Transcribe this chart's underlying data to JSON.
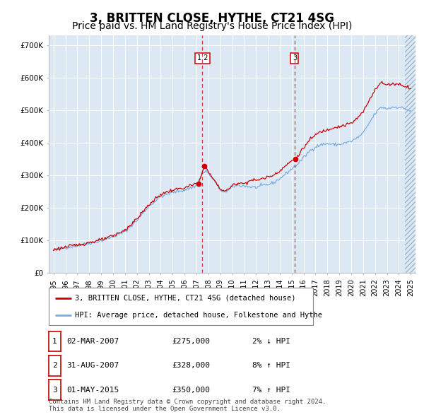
{
  "title": "3, BRITTEN CLOSE, HYTHE, CT21 4SG",
  "subtitle": "Price paid vs. HM Land Registry's House Price Index (HPI)",
  "title_fontsize": 12,
  "subtitle_fontsize": 10,
  "legend1": "3, BRITTEN CLOSE, HYTHE, CT21 4SG (detached house)",
  "legend2": "HPI: Average price, detached house, Folkestone and Hythe",
  "red_line_color": "#cc0000",
  "blue_line_color": "#7aacde",
  "plot_bg_color": "#dce9f5",
  "transactions": [
    {
      "date_num": 2007.17,
      "price": 275000,
      "label": "1"
    },
    {
      "date_num": 2007.67,
      "price": 328000,
      "label": "2"
    },
    {
      "date_num": 2015.33,
      "price": 350000,
      "label": "3"
    }
  ],
  "vline_dates": [
    2007.5,
    2015.25
  ],
  "vline_labels": [
    "1 2",
    "3"
  ],
  "label_dates": [
    2007.5,
    2015.25
  ],
  "ylim": [
    0,
    730000
  ],
  "yticks": [
    0,
    100000,
    200000,
    300000,
    400000,
    500000,
    600000,
    700000
  ],
  "ytick_labels": [
    "£0",
    "£100K",
    "£200K",
    "£300K",
    "£400K",
    "£500K",
    "£600K",
    "£700K"
  ],
  "xlim_start": 1994.6,
  "xlim_end": 2025.4,
  "xtick_years": [
    1995,
    1996,
    1997,
    1998,
    1999,
    2000,
    2001,
    2002,
    2003,
    2004,
    2005,
    2006,
    2007,
    2008,
    2009,
    2010,
    2011,
    2012,
    2013,
    2014,
    2015,
    2016,
    2017,
    2018,
    2019,
    2020,
    2021,
    2022,
    2023,
    2024,
    2025
  ],
  "footer": "Contains HM Land Registry data © Crown copyright and database right 2024.\nThis data is licensed under the Open Government Licence v3.0.",
  "table": [
    {
      "num": "1",
      "date": "02-MAR-2007",
      "price": "£275,000",
      "hpi": "2% ↓ HPI"
    },
    {
      "num": "2",
      "date": "31-AUG-2007",
      "price": "£328,000",
      "hpi": "8% ↑ HPI"
    },
    {
      "num": "3",
      "date": "01-MAY-2015",
      "price": "£350,000",
      "hpi": "7% ↑ HPI"
    }
  ],
  "hpi_anchors_blue": [
    [
      1995.0,
      70000
    ],
    [
      1996.0,
      78000
    ],
    [
      1997.0,
      85000
    ],
    [
      1998.0,
      92000
    ],
    [
      1999.0,
      100000
    ],
    [
      2000.0,
      112000
    ],
    [
      2001.0,
      128000
    ],
    [
      2002.0,
      162000
    ],
    [
      2003.0,
      205000
    ],
    [
      2004.0,
      235000
    ],
    [
      2005.0,
      248000
    ],
    [
      2006.0,
      255000
    ],
    [
      2007.0,
      268000
    ],
    [
      2007.5,
      305000
    ],
    [
      2007.83,
      315000
    ],
    [
      2008.5,
      285000
    ],
    [
      2009.0,
      255000
    ],
    [
      2009.5,
      248000
    ],
    [
      2010.0,
      265000
    ],
    [
      2010.5,
      270000
    ],
    [
      2011.0,
      268000
    ],
    [
      2011.5,
      265000
    ],
    [
      2012.0,
      263000
    ],
    [
      2012.5,
      268000
    ],
    [
      2013.0,
      272000
    ],
    [
      2013.5,
      278000
    ],
    [
      2014.0,
      290000
    ],
    [
      2014.5,
      305000
    ],
    [
      2015.0,
      320000
    ],
    [
      2015.5,
      335000
    ],
    [
      2016.0,
      355000
    ],
    [
      2016.5,
      375000
    ],
    [
      2017.0,
      388000
    ],
    [
      2017.5,
      395000
    ],
    [
      2018.0,
      398000
    ],
    [
      2018.5,
      395000
    ],
    [
      2019.0,
      395000
    ],
    [
      2019.5,
      400000
    ],
    [
      2020.0,
      405000
    ],
    [
      2020.5,
      415000
    ],
    [
      2021.0,
      430000
    ],
    [
      2021.5,
      460000
    ],
    [
      2022.0,
      490000
    ],
    [
      2022.5,
      510000
    ],
    [
      2023.0,
      505000
    ],
    [
      2023.5,
      510000
    ],
    [
      2024.0,
      510000
    ],
    [
      2024.5,
      505000
    ],
    [
      2025.0,
      498000
    ]
  ],
  "hpi_anchors_red": [
    [
      1995.0,
      72000
    ],
    [
      1996.0,
      80000
    ],
    [
      1997.0,
      87000
    ],
    [
      1998.0,
      94000
    ],
    [
      1999.0,
      102000
    ],
    [
      2000.0,
      114000
    ],
    [
      2001.0,
      132000
    ],
    [
      2002.0,
      167000
    ],
    [
      2003.0,
      210000
    ],
    [
      2004.0,
      242000
    ],
    [
      2005.0,
      255000
    ],
    [
      2006.0,
      262000
    ],
    [
      2007.0,
      275000
    ],
    [
      2007.17,
      275000
    ],
    [
      2007.67,
      328000
    ],
    [
      2007.83,
      325000
    ],
    [
      2008.0,
      310000
    ],
    [
      2008.5,
      285000
    ],
    [
      2009.0,
      258000
    ],
    [
      2009.5,
      252000
    ],
    [
      2010.0,
      268000
    ],
    [
      2010.5,
      278000
    ],
    [
      2011.0,
      275000
    ],
    [
      2011.5,
      285000
    ],
    [
      2012.0,
      285000
    ],
    [
      2012.5,
      290000
    ],
    [
      2013.0,
      295000
    ],
    [
      2013.5,
      302000
    ],
    [
      2014.0,
      315000
    ],
    [
      2014.5,
      330000
    ],
    [
      2015.0,
      345000
    ],
    [
      2015.33,
      350000
    ],
    [
      2015.5,
      360000
    ],
    [
      2016.0,
      385000
    ],
    [
      2016.5,
      408000
    ],
    [
      2017.0,
      425000
    ],
    [
      2017.5,
      435000
    ],
    [
      2018.0,
      440000
    ],
    [
      2018.5,
      448000
    ],
    [
      2019.0,
      450000
    ],
    [
      2019.5,
      455000
    ],
    [
      2020.0,
      460000
    ],
    [
      2020.5,
      475000
    ],
    [
      2021.0,
      495000
    ],
    [
      2021.5,
      530000
    ],
    [
      2022.0,
      565000
    ],
    [
      2022.5,
      585000
    ],
    [
      2023.0,
      578000
    ],
    [
      2023.5,
      582000
    ],
    [
      2024.0,
      580000
    ],
    [
      2024.5,
      575000
    ],
    [
      2025.0,
      568000
    ]
  ]
}
